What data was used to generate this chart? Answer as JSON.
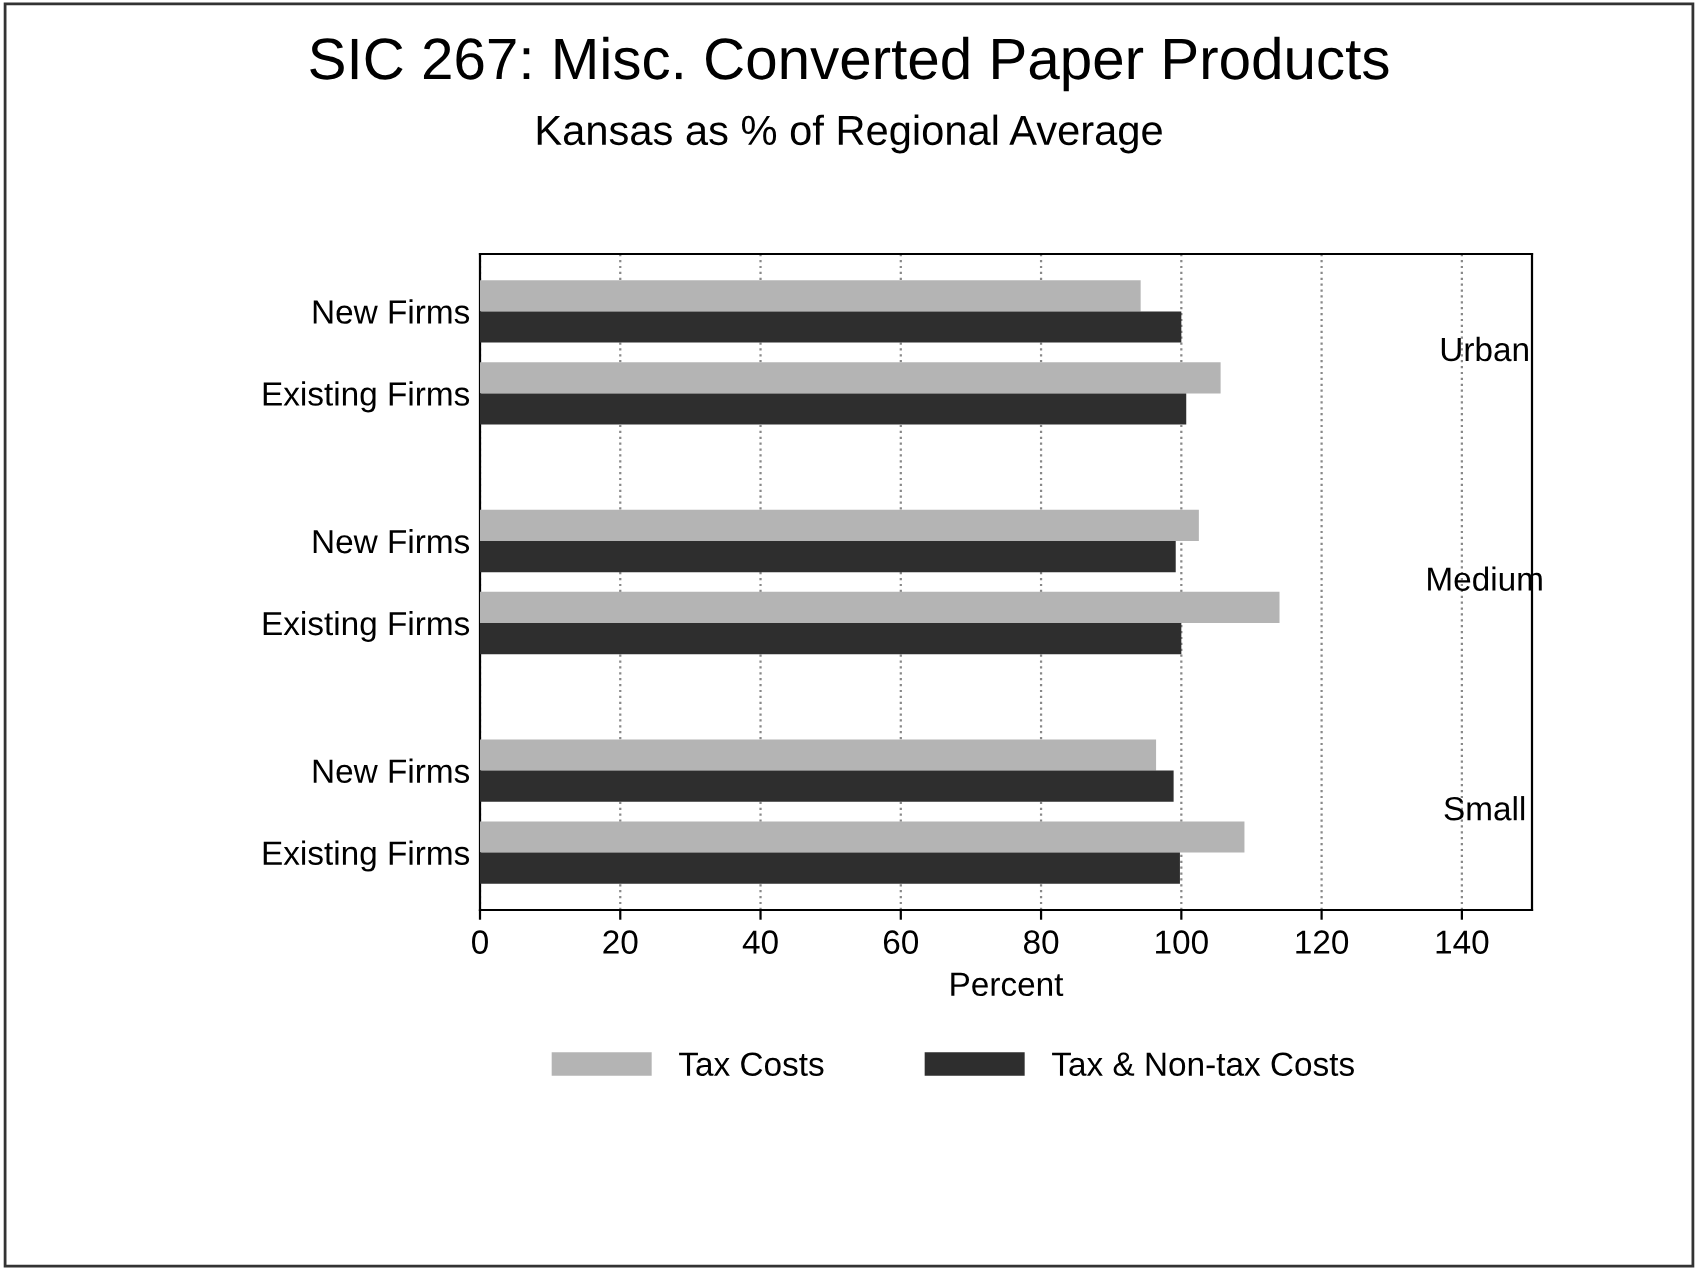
{
  "chart_data": {
    "type": "bar",
    "orientation": "horizontal",
    "title": "SIC 267: Misc. Converted Paper Products",
    "subtitle": "Kansas as % of Regional Average",
    "xlabel": "Percent",
    "categories": [
      "New Firms",
      "Existing Firms",
      "New Firms",
      "Existing Firms",
      "New Firms",
      "Existing Firms"
    ],
    "series": [
      {
        "name": "Tax Costs",
        "color": "#b4b4b4",
        "values": [
          94.2,
          105.6,
          102.5,
          114,
          96.4,
          109
        ]
      },
      {
        "name": "Tax & Non-tax Costs",
        "color": "#2e2e2e",
        "values": [
          100,
          100.7,
          99.2,
          100,
          98.9,
          99.8
        ]
      }
    ],
    "annotations": [
      "Urban",
      "Medium",
      "Small"
    ],
    "xlim": [
      0,
      150
    ],
    "xticks": [
      0,
      20,
      40,
      60,
      80,
      100,
      120,
      140
    ],
    "grid": "x",
    "legend": "bottom"
  }
}
